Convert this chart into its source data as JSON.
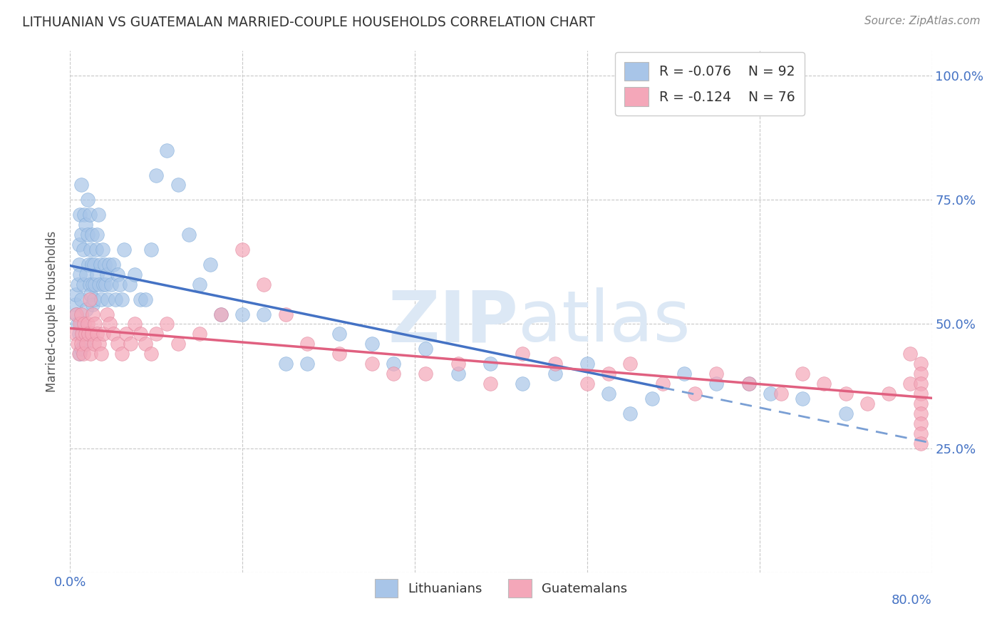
{
  "title": "LITHUANIAN VS GUATEMALAN MARRIED-COUPLE HOUSEHOLDS CORRELATION CHART",
  "source": "Source: ZipAtlas.com",
  "ylabel": "Married-couple Households",
  "xlim": [
    0.0,
    0.8
  ],
  "ylim": [
    0.0,
    1.05
  ],
  "yticks": [
    0.0,
    0.25,
    0.5,
    0.75,
    1.0
  ],
  "xticks": [
    0.0,
    0.16,
    0.32,
    0.48,
    0.64,
    0.8
  ],
  "color_blue": "#a8c5e8",
  "color_pink": "#f4a7b9",
  "color_line_blue": "#4472c4",
  "color_line_pink": "#e06080",
  "color_dash": "#7a9fd4",
  "color_axis_labels": "#4472c4",
  "color_title": "#333333",
  "watermark_color": "#dce8f5",
  "background_color": "#ffffff",
  "grid_color": "#c8c8c8",
  "lit_x": [
    0.005,
    0.005,
    0.006,
    0.007,
    0.007,
    0.008,
    0.008,
    0.008,
    0.009,
    0.009,
    0.009,
    0.01,
    0.01,
    0.01,
    0.01,
    0.01,
    0.012,
    0.012,
    0.013,
    0.013,
    0.014,
    0.015,
    0.015,
    0.016,
    0.016,
    0.017,
    0.018,
    0.018,
    0.019,
    0.019,
    0.02,
    0.02,
    0.021,
    0.021,
    0.022,
    0.022,
    0.023,
    0.024,
    0.025,
    0.025,
    0.026,
    0.027,
    0.028,
    0.029,
    0.03,
    0.031,
    0.032,
    0.033,
    0.034,
    0.035,
    0.036,
    0.038,
    0.04,
    0.042,
    0.044,
    0.046,
    0.048,
    0.05,
    0.055,
    0.06,
    0.065,
    0.07,
    0.075,
    0.08,
    0.09,
    0.1,
    0.11,
    0.12,
    0.13,
    0.14,
    0.16,
    0.18,
    0.2,
    0.22,
    0.25,
    0.28,
    0.3,
    0.33,
    0.36,
    0.39,
    0.42,
    0.45,
    0.48,
    0.5,
    0.52,
    0.54,
    0.57,
    0.6,
    0.63,
    0.65,
    0.68,
    0.72
  ],
  "lit_y": [
    0.54,
    0.56,
    0.52,
    0.58,
    0.5,
    0.62,
    0.48,
    0.66,
    0.72,
    0.44,
    0.6,
    0.55,
    0.68,
    0.78,
    0.5,
    0.45,
    0.65,
    0.58,
    0.72,
    0.46,
    0.7,
    0.6,
    0.53,
    0.68,
    0.75,
    0.62,
    0.72,
    0.58,
    0.65,
    0.56,
    0.62,
    0.68,
    0.58,
    0.54,
    0.62,
    0.55,
    0.58,
    0.65,
    0.6,
    0.68,
    0.72,
    0.58,
    0.62,
    0.55,
    0.65,
    0.58,
    0.62,
    0.58,
    0.6,
    0.55,
    0.62,
    0.58,
    0.62,
    0.55,
    0.6,
    0.58,
    0.55,
    0.65,
    0.58,
    0.6,
    0.55,
    0.55,
    0.65,
    0.8,
    0.85,
    0.78,
    0.68,
    0.58,
    0.62,
    0.52,
    0.52,
    0.52,
    0.42,
    0.42,
    0.48,
    0.46,
    0.42,
    0.45,
    0.4,
    0.42,
    0.38,
    0.4,
    0.42,
    0.36,
    0.32,
    0.35,
    0.4,
    0.38,
    0.38,
    0.36,
    0.35,
    0.32
  ],
  "guat_x": [
    0.005,
    0.006,
    0.007,
    0.008,
    0.009,
    0.01,
    0.01,
    0.011,
    0.012,
    0.013,
    0.014,
    0.015,
    0.016,
    0.017,
    0.018,
    0.019,
    0.02,
    0.021,
    0.022,
    0.023,
    0.025,
    0.027,
    0.029,
    0.031,
    0.034,
    0.037,
    0.04,
    0.044,
    0.048,
    0.052,
    0.056,
    0.06,
    0.065,
    0.07,
    0.075,
    0.08,
    0.09,
    0.1,
    0.12,
    0.14,
    0.16,
    0.18,
    0.2,
    0.22,
    0.25,
    0.28,
    0.3,
    0.33,
    0.36,
    0.39,
    0.42,
    0.45,
    0.48,
    0.5,
    0.52,
    0.55,
    0.58,
    0.6,
    0.63,
    0.66,
    0.68,
    0.7,
    0.72,
    0.74,
    0.76,
    0.78,
    0.78,
    0.79,
    0.79,
    0.79,
    0.79,
    0.79,
    0.79,
    0.79,
    0.79,
    0.79
  ],
  "guat_y": [
    0.48,
    0.52,
    0.46,
    0.44,
    0.5,
    0.46,
    0.52,
    0.48,
    0.44,
    0.5,
    0.48,
    0.46,
    0.5,
    0.48,
    0.55,
    0.44,
    0.48,
    0.52,
    0.46,
    0.5,
    0.48,
    0.46,
    0.44,
    0.48,
    0.52,
    0.5,
    0.48,
    0.46,
    0.44,
    0.48,
    0.46,
    0.5,
    0.48,
    0.46,
    0.44,
    0.48,
    0.5,
    0.46,
    0.48,
    0.52,
    0.65,
    0.58,
    0.52,
    0.46,
    0.44,
    0.42,
    0.4,
    0.4,
    0.42,
    0.38,
    0.44,
    0.42,
    0.38,
    0.4,
    0.42,
    0.38,
    0.36,
    0.4,
    0.38,
    0.36,
    0.4,
    0.38,
    0.36,
    0.34,
    0.36,
    0.38,
    0.44,
    0.42,
    0.4,
    0.38,
    0.36,
    0.34,
    0.32,
    0.3,
    0.28,
    0.26
  ]
}
